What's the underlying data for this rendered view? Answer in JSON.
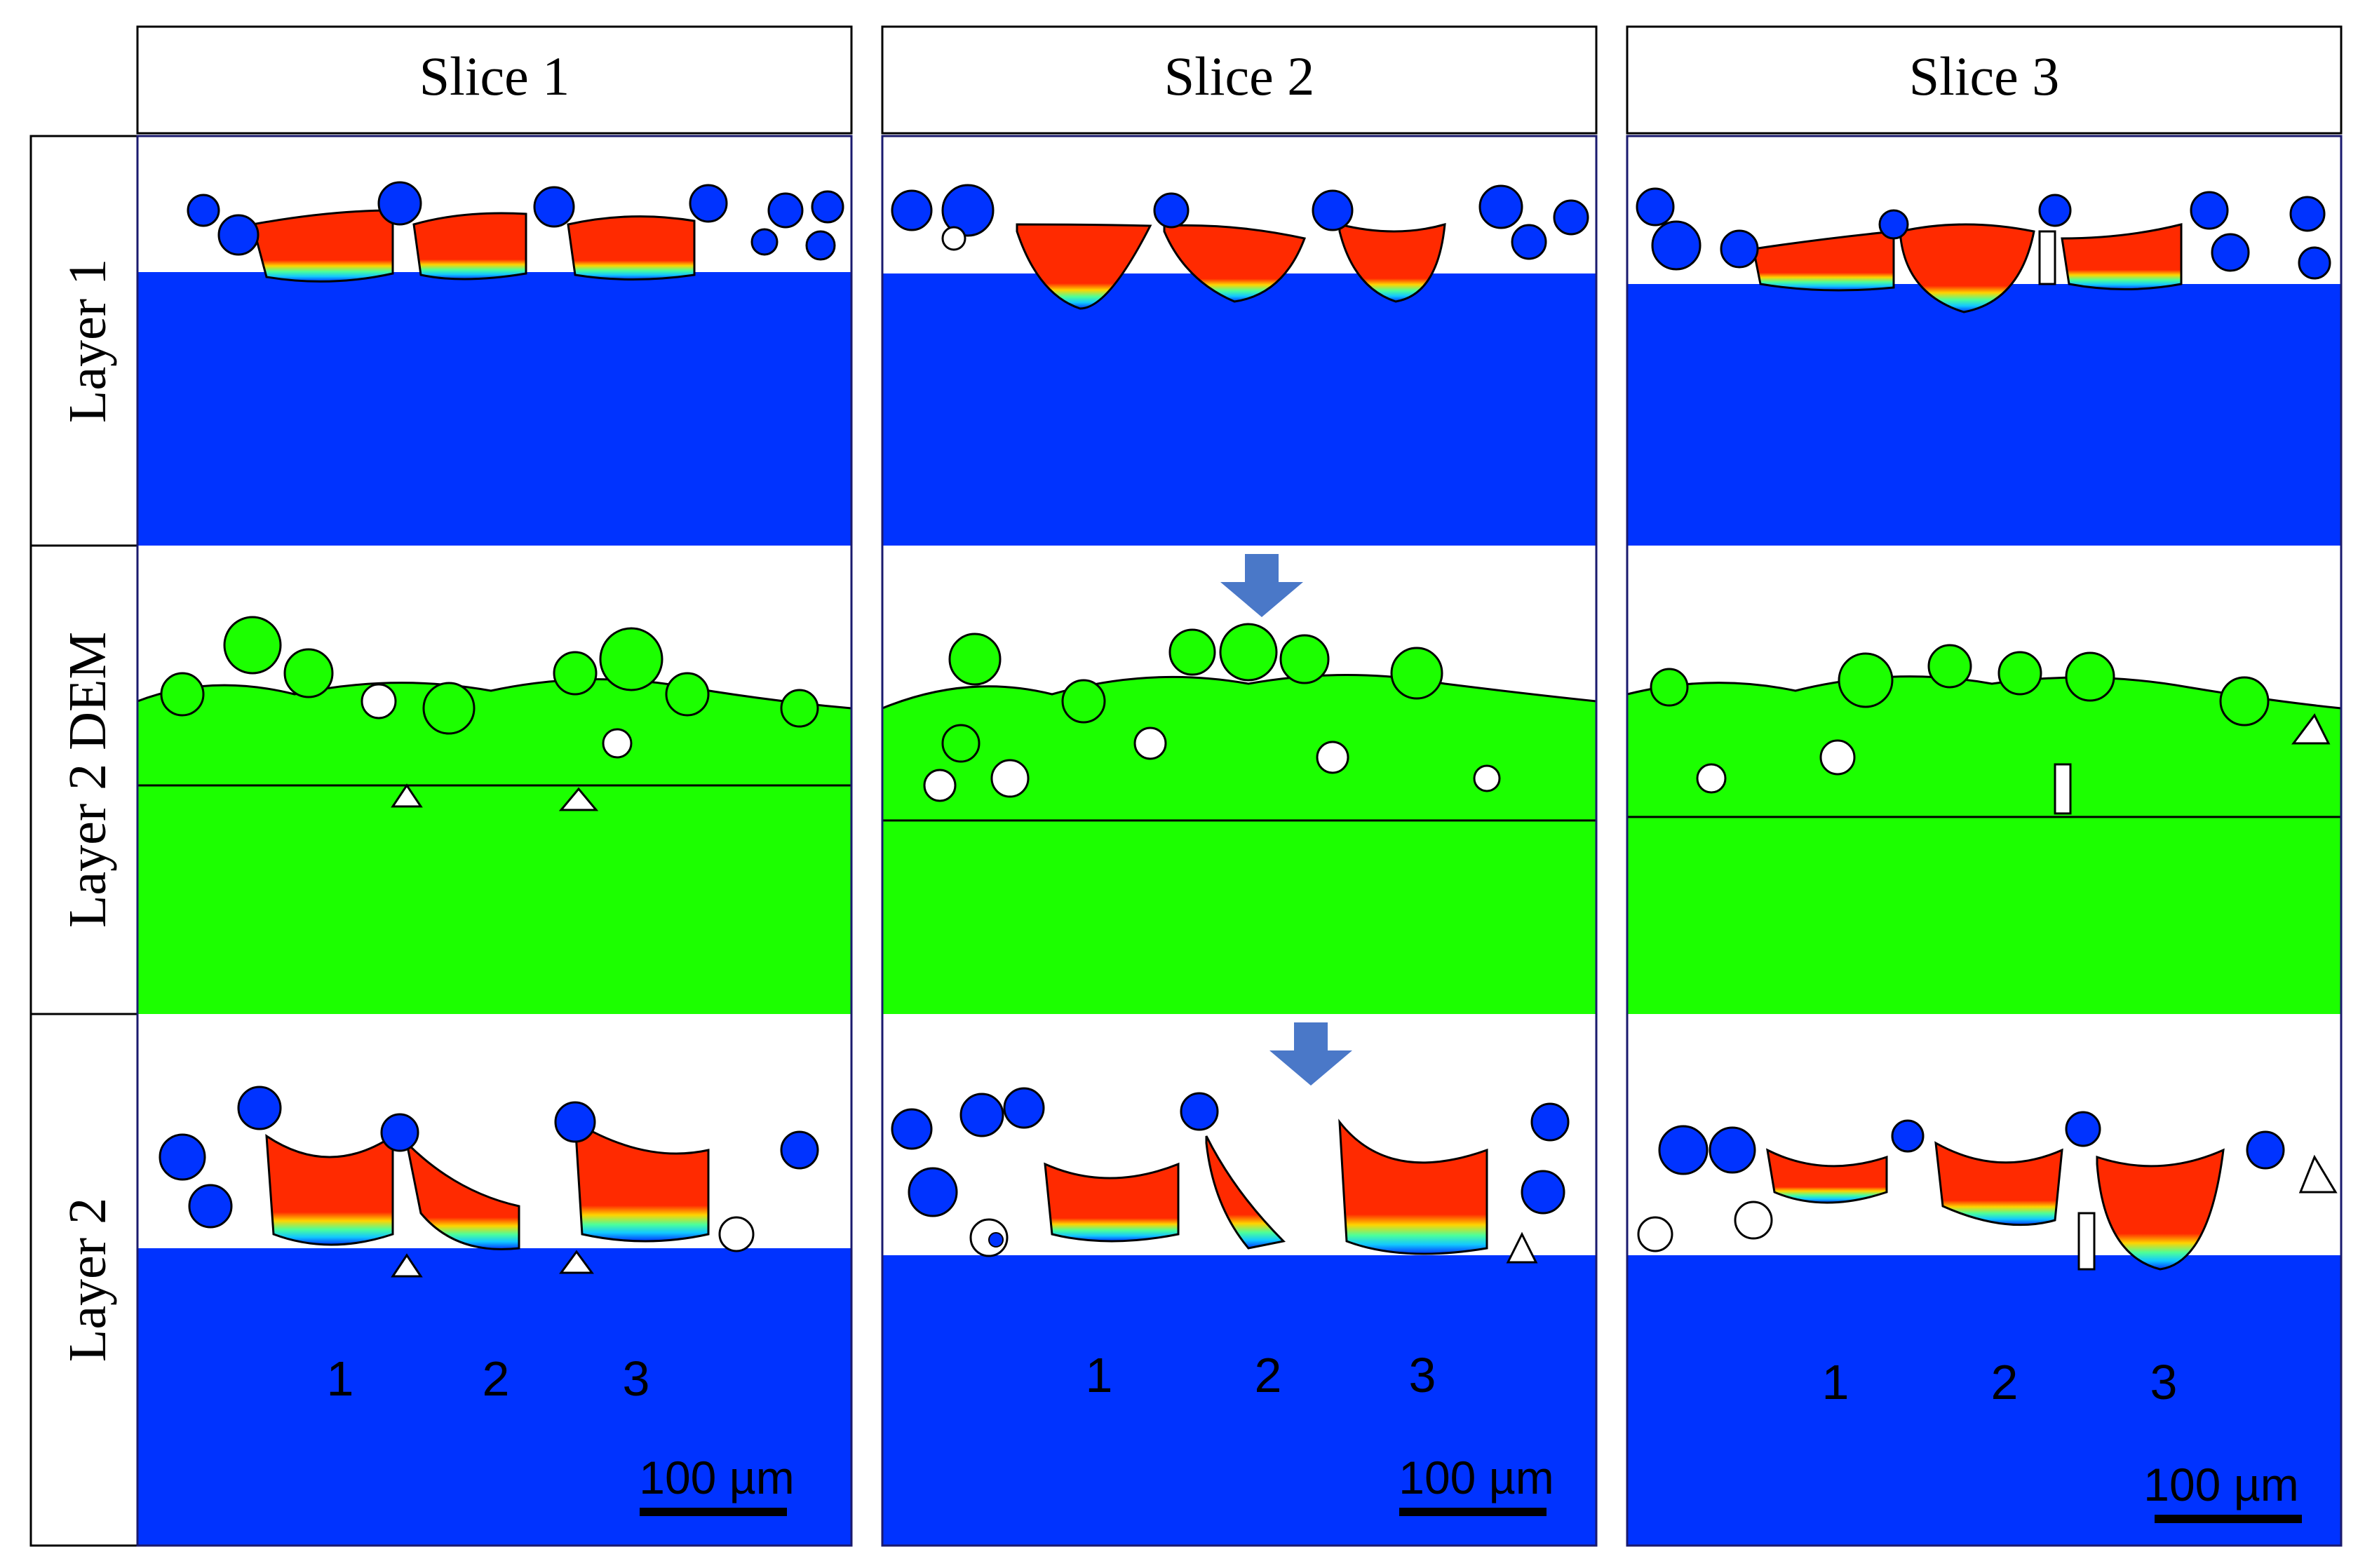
{
  "columns": [
    {
      "label": "Slice 1"
    },
    {
      "label": "Slice 2"
    },
    {
      "label": "Slice 3"
    }
  ],
  "rows": [
    {
      "label": "Layer 1"
    },
    {
      "label": "Layer 2 DEM"
    },
    {
      "label": "Layer 2"
    }
  ],
  "track_numbers": [
    "1",
    "2",
    "3"
  ],
  "scale_bar": {
    "label": "100 µm"
  },
  "colors": {
    "substrate": "#0033ff",
    "melt_pool": "#ff2a00",
    "dem_powder": "#1cff00",
    "outline": "#000000",
    "arrow": "#4a78c8",
    "frame": "#1a1a6e"
  }
}
